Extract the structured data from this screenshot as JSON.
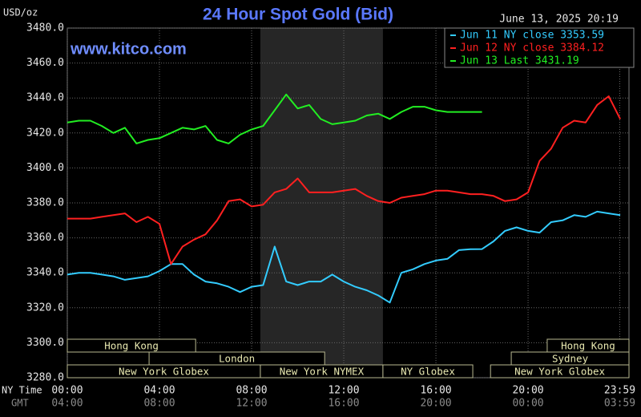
{
  "chart_data": {
    "type": "line",
    "title": "24 Hour Spot Gold (Bid)",
    "y_unit": "USD/oz",
    "timestamp": "June 13, 2025 20:19",
    "site": "www.kitco.com",
    "xlabel": "NY Time",
    "x2label": "GMT",
    "x": [
      0,
      0.5,
      1,
      1.5,
      2,
      2.5,
      3,
      3.5,
      4,
      4.5,
      5,
      5.5,
      6,
      6.5,
      7,
      7.5,
      8,
      8.5,
      9,
      9.5,
      10,
      10.5,
      11,
      11.5,
      12,
      12.5,
      13,
      13.5,
      14,
      14.5,
      15,
      15.5,
      16,
      16.5,
      17,
      17.5,
      18,
      18.5,
      19,
      19.5,
      20,
      20.5,
      21,
      21.5,
      22,
      22.5,
      23,
      23.5,
      24
    ],
    "xlim": [
      0,
      24.38
    ],
    "xticks": [
      {
        "value": 0,
        "label": "00:00"
      },
      {
        "value": 4,
        "label": "04:00"
      },
      {
        "value": 8,
        "label": "08:00"
      },
      {
        "value": 12,
        "label": "12:00"
      },
      {
        "value": 16,
        "label": "16:00"
      },
      {
        "value": 20,
        "label": "20:00"
      },
      {
        "value": 23.98,
        "label": "23:59"
      }
    ],
    "x2ticks": [
      {
        "value": 0,
        "label": "04:00"
      },
      {
        "value": 4,
        "label": "08:00"
      },
      {
        "value": 8,
        "label": "12:00"
      },
      {
        "value": 12,
        "label": "16:00"
      },
      {
        "value": 16,
        "label": "20:00"
      },
      {
        "value": 20,
        "label": "00:00"
      },
      {
        "value": 23.98,
        "label": "03:59"
      }
    ],
    "ylim": [
      3280,
      3480
    ],
    "yticks": [
      {
        "value": 3280,
        "label": "3280.0"
      },
      {
        "value": 3300,
        "label": "3300.0"
      },
      {
        "value": 3320,
        "label": "3320.0"
      },
      {
        "value": 3340,
        "label": "3340.0"
      },
      {
        "value": 3360,
        "label": "3360.0"
      },
      {
        "value": 3380,
        "label": "3380.0"
      },
      {
        "value": 3400,
        "label": "3400.0"
      },
      {
        "value": 3420,
        "label": "3420.0"
      },
      {
        "value": 3440,
        "label": "3440.0"
      },
      {
        "value": 3460,
        "label": "3460.0"
      },
      {
        "value": 3480,
        "label": "3480.0"
      }
    ],
    "grid": true,
    "series": [
      {
        "name": "Jun 11 NY close 3353.59",
        "color": "#33ccff",
        "values": [
          3339,
          3340,
          3340,
          3339,
          3338,
          3336,
          3337,
          3338,
          3341,
          3345,
          3345,
          3339,
          3335,
          3334,
          3332,
          3329,
          3332,
          3333,
          3355,
          3335,
          3333,
          3335,
          3335,
          3339,
          3335,
          3332,
          3330,
          3327,
          3323,
          3340,
          3342,
          3345,
          3347,
          3348,
          3353,
          3353.5,
          3353.6,
          3358,
          3364,
          3366,
          3364,
          3363,
          3369,
          3370,
          3373,
          3372,
          3375,
          3374,
          3373
        ]
      },
      {
        "name": "Jun 12 NY close 3384.12",
        "color": "#ff2020",
        "values": [
          3371,
          3371,
          3371,
          3372,
          3373,
          3374,
          3369,
          3372,
          3368,
          3345,
          3355,
          3359,
          3362,
          3370,
          3381,
          3382,
          3378,
          3379,
          3386,
          3388,
          3394,
          3386,
          3386,
          3386,
          3387,
          3388,
          3384,
          3381,
          3380,
          3383,
          3384,
          3385,
          3387,
          3387,
          3386,
          3385,
          3385,
          3384,
          3381,
          3382,
          3386,
          3404,
          3411,
          3423,
          3427,
          3426,
          3436,
          3441,
          3428
        ]
      },
      {
        "name": "Jun 13 Last 3431.19",
        "color": "#22ee22",
        "values": [
          3426,
          3427,
          3427,
          3424,
          3420,
          3423,
          3414,
          3416,
          3417,
          3420,
          3423,
          3422,
          3424,
          3416,
          3414,
          3419,
          3422,
          3424,
          3433,
          3442,
          3434,
          3436,
          3428,
          3425,
          3426,
          3427,
          3430,
          3431,
          3428,
          3432,
          3435,
          3435,
          3433,
          3432,
          3432,
          3432,
          3432,
          null,
          null,
          null,
          null,
          null,
          null,
          null,
          null,
          null,
          null,
          null,
          null
        ]
      }
    ],
    "sessions": [
      [
        {
          "name": "Hong Kong",
          "start": 0,
          "end": 5.57
        },
        {
          "name": "Hong Kong",
          "start": 20.83,
          "end": 24.38
        }
      ],
      [
        {
          "name": "London",
          "start": 3.55,
          "end": 11.17
        },
        {
          "name": "Sydney",
          "start": 19.27,
          "end": 24.38
        }
      ],
      [
        {
          "name": "New York Globex",
          "start": 0,
          "end": 8.38
        },
        {
          "name": "New York NYMEX",
          "start": 8.38,
          "end": 13.7
        },
        {
          "name": "NY Globex",
          "start": 13.7,
          "end": 17.6
        },
        {
          "name": "New York Globex",
          "start": 18.37,
          "end": 24.38
        }
      ]
    ]
  }
}
